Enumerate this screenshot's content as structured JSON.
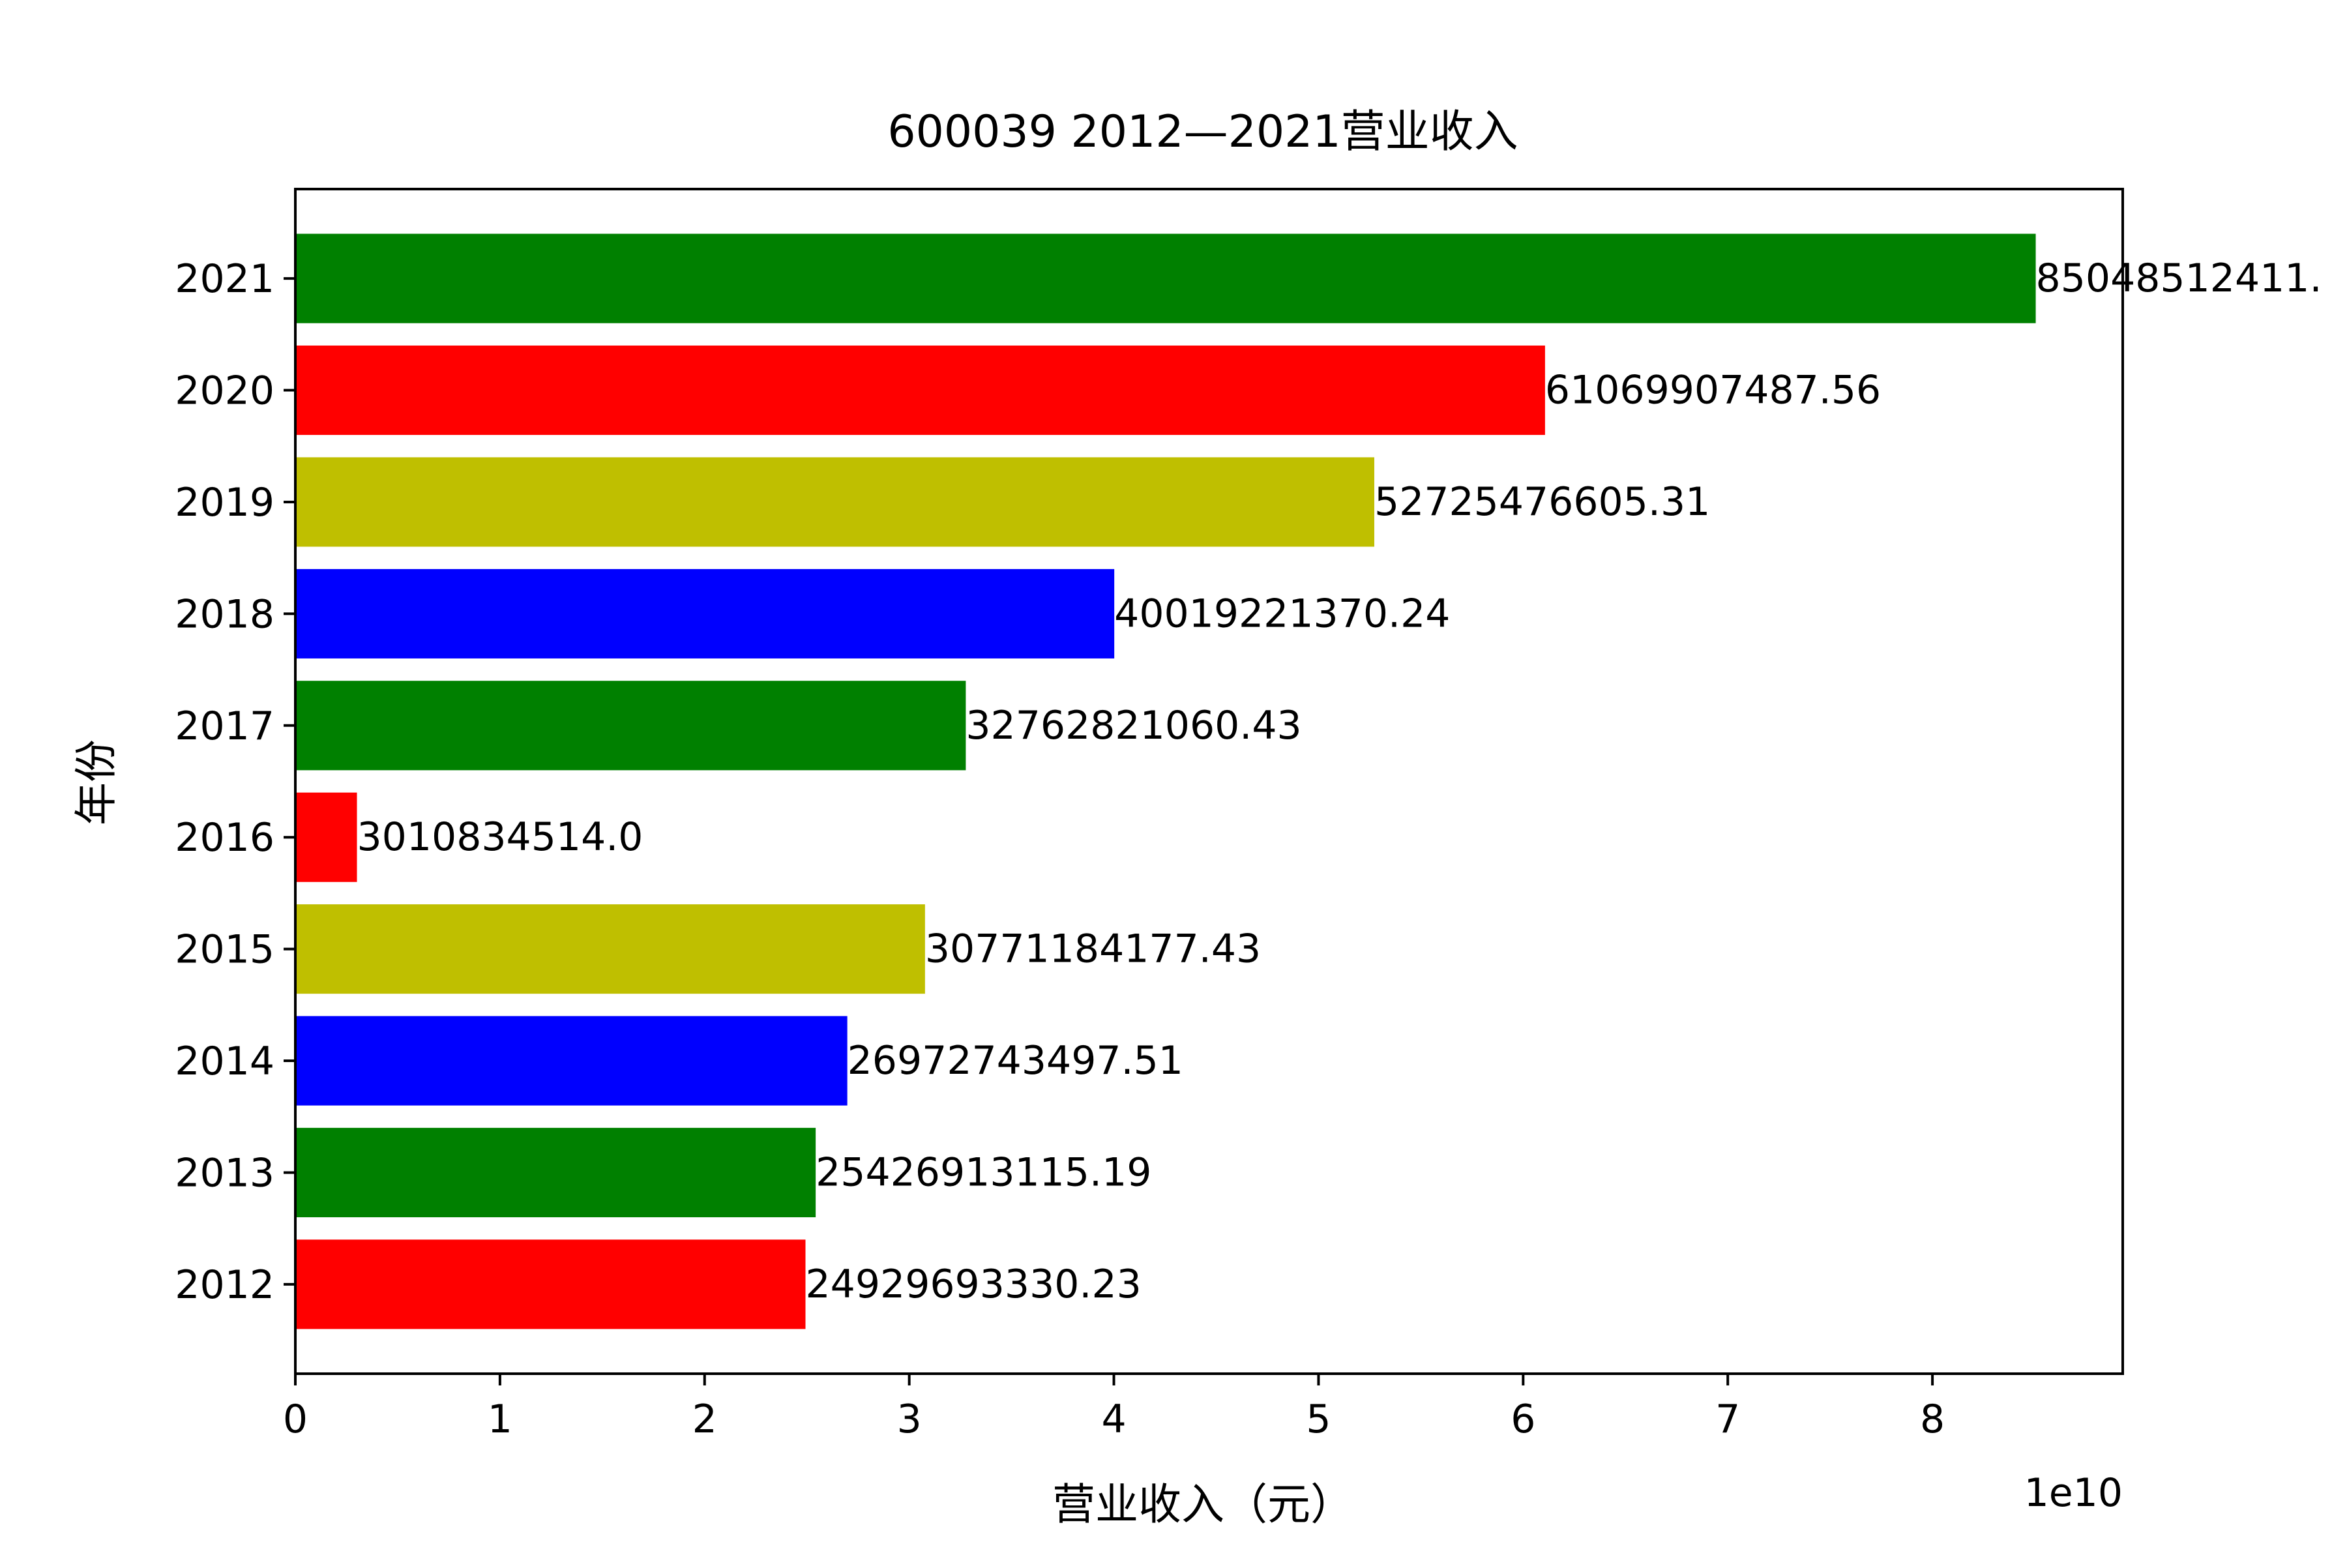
{
  "chart_data": {
    "type": "bar",
    "orientation": "horizontal",
    "title": "600039 2012—2021营业收入",
    "xlabel": "营业收入（元）",
    "ylabel": "年份",
    "x_scale_label": "1e10",
    "xlim": [
      0,
      8.93
    ],
    "x_ticks": [
      0,
      1,
      2,
      3,
      4,
      5,
      6,
      7,
      8
    ],
    "x_tick_labels": [
      "0",
      "1",
      "2",
      "3",
      "4",
      "5",
      "6",
      "7",
      "8"
    ],
    "grid": false,
    "legend": "none",
    "categories": [
      "2012",
      "2013",
      "2014",
      "2015",
      "2016",
      "2017",
      "2018",
      "2019",
      "2020",
      "2021"
    ],
    "values": [
      24929693330.23,
      25426913115.19,
      26972743497.51,
      30771184177.43,
      3010834514.0,
      32762821060.43,
      40019221370.24,
      52725476605.31,
      61069907487.56,
      85048512411.0
    ],
    "value_labels": [
      "24929693330.23",
      "25426913115.19",
      "26972743497.51",
      "30771184177.43",
      "3010834514.0",
      "32762821060.43",
      "40019221370.24",
      "52725476605.31",
      "61069907487.56",
      "85048512411."
    ],
    "colors": [
      "#ff0000",
      "#008000",
      "#0000ff",
      "#bfbf00",
      "#ff0000",
      "#008000",
      "#0000ff",
      "#bfbf00",
      "#ff0000",
      "#008000"
    ]
  }
}
